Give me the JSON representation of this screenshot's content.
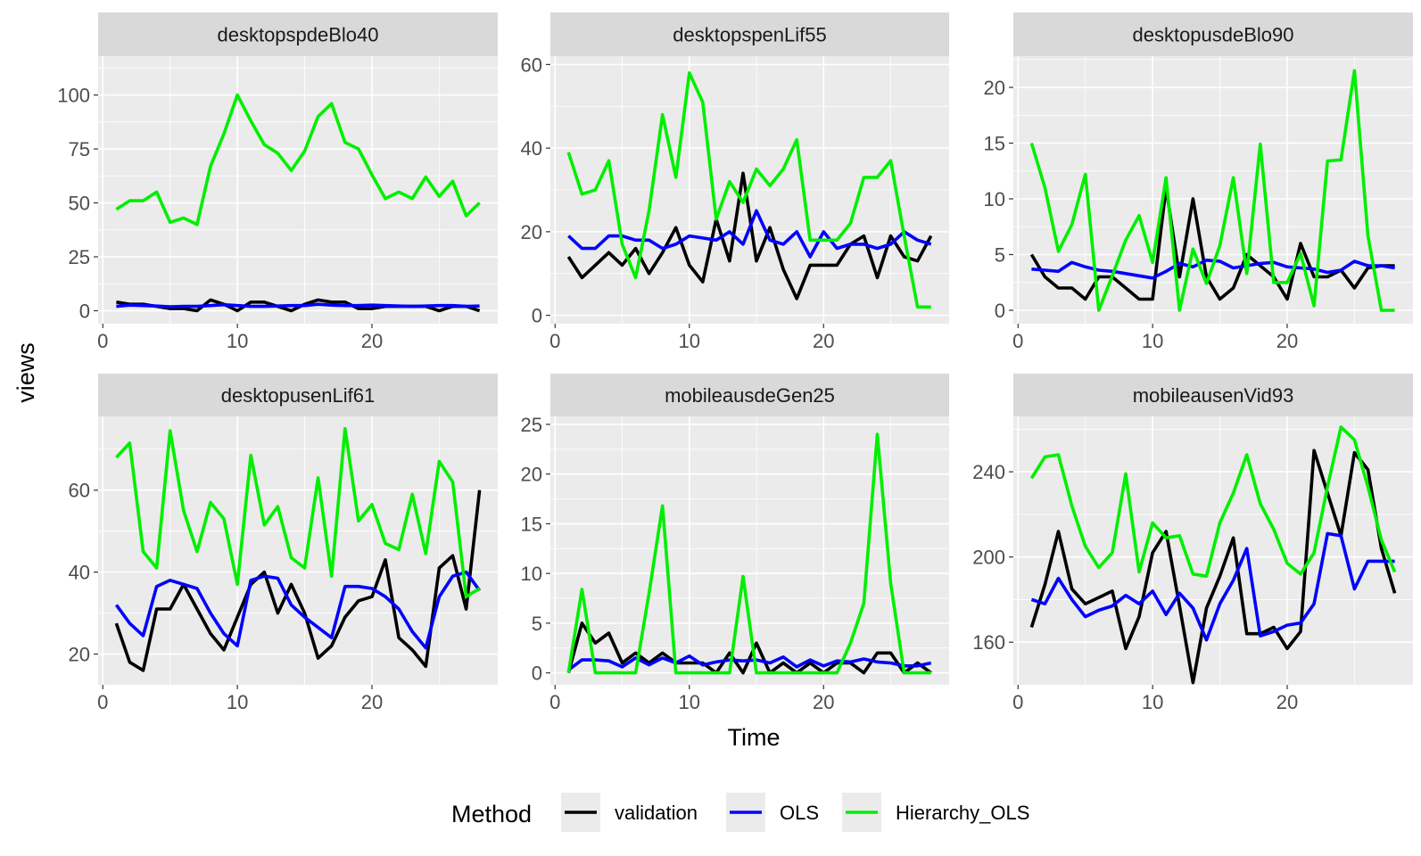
{
  "chart_data": {
    "type": "line",
    "xlabel": "Time",
    "ylabel": "views",
    "legend": {
      "title": "Method",
      "position": "bottom",
      "entries": [
        {
          "name": "validation",
          "color": "#000000"
        },
        {
          "name": "OLS",
          "color": "#0000ff"
        },
        {
          "name": "Hierarchy_OLS",
          "color": "#00ee00"
        }
      ]
    },
    "x": [
      1,
      2,
      3,
      4,
      5,
      6,
      7,
      8,
      9,
      10,
      11,
      12,
      13,
      14,
      15,
      16,
      17,
      18,
      19,
      20,
      21,
      22,
      23,
      24,
      25,
      26,
      27,
      28
    ],
    "panels": [
      {
        "title": "desktopspdeBlo40",
        "xlim": [
          -0.35,
          29.35
        ],
        "ylim": [
          -6,
          118
        ],
        "xticks": [
          0,
          10,
          20
        ],
        "yticks": [
          0,
          25,
          50,
          75,
          100
        ],
        "series": [
          {
            "name": "validation",
            "values": [
              4,
              3,
              3,
              2,
              1,
              1,
              0,
              5,
              3,
              0,
              4,
              4,
              2,
              0,
              3,
              5,
              4,
              4,
              1,
              1,
              2,
              2,
              2,
              2,
              0,
              2,
              2,
              0
            ]
          },
          {
            "name": "OLS",
            "values": [
              2,
              2.6,
              2.4,
              2.2,
              1.8,
              2,
              2,
              2.4,
              2.8,
              2.4,
              2,
              2,
              2.2,
              2.4,
              2.4,
              3,
              2.6,
              2.4,
              2.4,
              2.6,
              2.4,
              2.2,
              2,
              2.2,
              2.4,
              2.4,
              2,
              2.2
            ]
          },
          {
            "name": "Hierarchy_OLS",
            "values": [
              47,
              51,
              51,
              55,
              41,
              43,
              40,
              67,
              82,
              100,
              88,
              77,
              73,
              65,
              74,
              90,
              96,
              78,
              75,
              63,
              52,
              55,
              52,
              62,
              53,
              60,
              44,
              50
            ]
          }
        ]
      },
      {
        "title": "desktopspenLif55",
        "xlim": [
          -0.35,
          29.35
        ],
        "ylim": [
          -2,
          62
        ],
        "xticks": [
          0,
          10,
          20
        ],
        "yticks": [
          0,
          20,
          40,
          60
        ],
        "series": [
          {
            "name": "validation",
            "values": [
              14,
              9,
              12,
              15,
              12,
              16,
              10,
              15,
              21,
              12,
              8,
              23,
              13,
              34,
              13,
              21,
              11,
              4,
              12,
              12,
              12,
              17,
              19,
              9,
              19,
              14,
              13,
              19
            ]
          },
          {
            "name": "OLS",
            "values": [
              19,
              16,
              16,
              19,
              19,
              18,
              18,
              16,
              17,
              19,
              18.5,
              18,
              20,
              17,
              25,
              18,
              17,
              20,
              14,
              20,
              16,
              17,
              17,
              16,
              17,
              20,
              18,
              17
            ]
          },
          {
            "name": "Hierarchy_OLS",
            "values": [
              39,
              29,
              30,
              37,
              17,
              9,
              25,
              48,
              33,
              58,
              51,
              23,
              32,
              27,
              35,
              31,
              35,
              42,
              18,
              18,
              18,
              22,
              33,
              33,
              37,
              19,
              2,
              2
            ]
          }
        ]
      },
      {
        "title": "desktopusdeBlo90",
        "xlim": [
          -0.35,
          29.35
        ],
        "ylim": [
          -1.2,
          22.8
        ],
        "xticks": [
          0,
          10,
          20
        ],
        "yticks": [
          0,
          5,
          10,
          15,
          20
        ],
        "series": [
          {
            "name": "validation",
            "values": [
              5,
              3,
              2,
              2,
              1,
              3,
              3,
              2,
              1,
              1,
              11,
              3,
              10,
              3,
              1,
              2,
              5,
              4,
              3,
              1,
              6,
              3,
              3,
              3.6,
              2,
              3.8,
              4,
              4
            ]
          },
          {
            "name": "OLS",
            "values": [
              3.7,
              3.6,
              3.5,
              4.3,
              3.9,
              3.6,
              3.5,
              3.3,
              3.1,
              2.9,
              3.5,
              4.2,
              3.9,
              4.5,
              4.4,
              3.8,
              4,
              4.2,
              4.3,
              3.9,
              3.8,
              3.7,
              3.4,
              3.6,
              4.4,
              4,
              4,
              3.8
            ]
          },
          {
            "name": "Hierarchy_OLS",
            "values": [
              15,
              11,
              5.3,
              7.7,
              12.2,
              0,
              3.1,
              6.3,
              8.5,
              4.3,
              11.9,
              0,
              5.5,
              2.4,
              5.8,
              11.9,
              3.3,
              14.9,
              2.5,
              2.5,
              5.1,
              0.4,
              13.4,
              13.5,
              21.5,
              6.7,
              0,
              0
            ]
          }
        ]
      },
      {
        "title": "desktopusenLif61",
        "xlim": [
          -0.35,
          29.35
        ],
        "ylim": [
          12.5,
          78
        ],
        "xticks": [
          0,
          10,
          20
        ],
        "yticks": [
          20,
          40,
          60
        ],
        "series": [
          {
            "name": "validation",
            "values": [
              27.5,
              18,
              16,
              31,
              31,
              37,
              31,
              25,
              21,
              29,
              37,
              40,
              30,
              37,
              30,
              19,
              22,
              29,
              33,
              34,
              43,
              24,
              21,
              17,
              41,
              44,
              31,
              60
            ]
          },
          {
            "name": "OLS",
            "values": [
              32,
              27.5,
              24.5,
              36.5,
              38,
              37,
              36,
              30,
              25,
              22,
              38,
              39,
              38.5,
              32,
              29,
              26.5,
              24,
              36.5,
              36.5,
              36,
              34,
              31,
              25.5,
              21.5,
              34,
              39,
              40,
              35.5
            ]
          },
          {
            "name": "Hierarchy_OLS",
            "values": [
              68,
              71.5,
              45,
              41,
              74.5,
              55,
              45,
              57,
              53,
              37,
              68.5,
              51.5,
              56,
              43.5,
              41,
              63,
              39,
              75,
              52.5,
              56.5,
              47,
              45.5,
              59,
              44.5,
              67,
              62,
              34,
              36
            ]
          }
        ]
      },
      {
        "title": "mobileausdeGen25",
        "xlim": [
          -0.35,
          29.35
        ],
        "ylim": [
          -1.2,
          25.8
        ],
        "xticks": [
          0,
          10,
          20
        ],
        "yticks": [
          0,
          5,
          10,
          15,
          20,
          25
        ],
        "series": [
          {
            "name": "validation",
            "values": [
              0,
              5,
              3,
              4,
              1,
              2,
              1,
              2,
              1,
              1,
              1,
              0,
              2,
              0,
              3,
              0,
              1,
              0,
              1,
              0,
              1,
              1,
              0,
              2,
              2,
              0,
              1,
              0
            ]
          },
          {
            "name": "OLS",
            "values": [
              0.3,
              1.3,
              1.3,
              1.2,
              0.6,
              1.5,
              0.8,
              1.5,
              1,
              1.7,
              0.8,
              1.1,
              1.3,
              1.2,
              1.3,
              1,
              1.6,
              0.6,
              1.3,
              0.7,
              1.2,
              1.1,
              1.4,
              1.1,
              1,
              0.7,
              0.7,
              1
            ]
          },
          {
            "name": "Hierarchy_OLS",
            "values": [
              0,
              8.4,
              0,
              0,
              0,
              0,
              8,
              16.8,
              0,
              0,
              0,
              0,
              0,
              9.7,
              0,
              0,
              0,
              0,
              0,
              0,
              0,
              3,
              7,
              24,
              9,
              0,
              0,
              0
            ]
          }
        ]
      },
      {
        "title": "mobileausenVid93",
        "xlim": [
          -0.35,
          29.35
        ],
        "ylim": [
          140,
          266
        ],
        "xticks": [
          0,
          10,
          20
        ],
        "yticks": [
          160,
          200,
          240
        ],
        "series": [
          {
            "name": "validation",
            "values": [
              167,
              187,
              212,
              185,
              178,
              181,
              184,
              157,
              172,
              202,
              212,
              177,
              141,
              176,
              191,
              209,
              164,
              164,
              167,
              157,
              165,
              250,
              230,
              210,
              249,
              241,
              204,
              183
            ]
          },
          {
            "name": "OLS",
            "values": [
              180,
              178,
              190,
              180,
              172,
              175,
              177,
              182,
              178,
              184,
              173,
              183,
              176,
              161,
              178,
              189,
              204,
              163,
              165,
              168,
              169,
              178,
              211,
              210,
              185,
              198,
              198,
              198
            ]
          },
          {
            "name": "Hierarchy_OLS",
            "values": [
              237,
              247,
              248,
              224,
              205,
              195,
              202,
              239,
              193,
              216,
              209,
              210,
              192,
              191,
              216,
              230,
              248,
              225,
              213,
              197,
              192,
              202,
              233,
              261,
              255,
              233,
              208,
              193
            ]
          }
        ]
      }
    ]
  }
}
